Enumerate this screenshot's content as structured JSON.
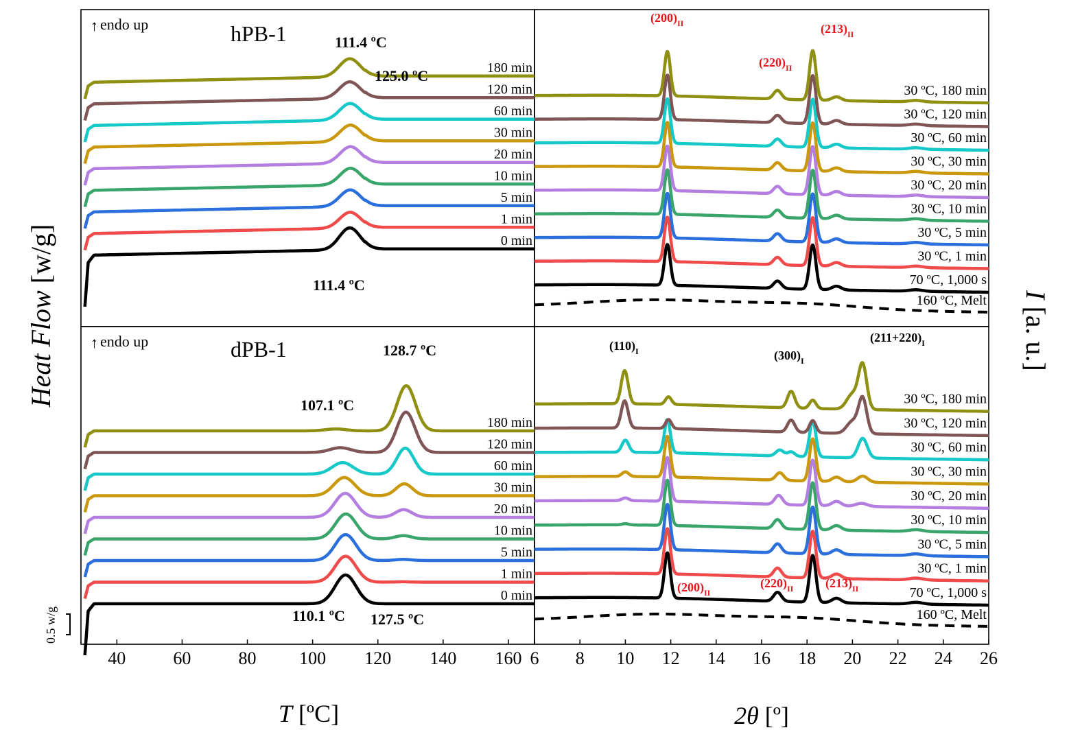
{
  "figure": {
    "y_axis_label_left_italic": "Heat Flow",
    "y_axis_label_left_unit": "[w/g]",
    "y_axis_label_right_italic": "I",
    "y_axis_label_right_unit": "[a. u.]",
    "scale_bar_label": "0.5 w/g"
  },
  "colors": {
    "0 min": "#000000",
    "1 min": "#ef4b4b",
    "5 min": "#2a6fdb",
    "10 min": "#3aa56a",
    "20 min": "#b47ee0",
    "30 min": "#c9980c",
    "60 min": "#17c8c8",
    "120 min": "#7f5555",
    "180 min": "#8f8f12"
  },
  "chart_data": [
    {
      "id": "dsc_hpb1",
      "type": "line",
      "title": "hPB-1",
      "corner_label": "endo up",
      "xlabel_italic": "T",
      "xlabel_unit": "[ºC]",
      "xlim": [
        29,
        168
      ],
      "xticks": [
        40,
        60,
        80,
        100,
        120,
        140,
        160
      ],
      "series": [
        {
          "name": "0 min",
          "offset": 0,
          "peaks": [
            {
              "x": 111.4,
              "h": 1.45,
              "w": 3.2
            }
          ]
        },
        {
          "name": "1 min",
          "offset": 1,
          "peaks": [
            {
              "x": 111.5,
              "h": 1.05,
              "w": 3.2
            }
          ]
        },
        {
          "name": "5 min",
          "offset": 2,
          "peaks": [
            {
              "x": 111.5,
              "h": 1.1,
              "w": 3.2
            }
          ]
        },
        {
          "name": "10 min",
          "offset": 3,
          "peaks": [
            {
              "x": 111.6,
              "h": 1.1,
              "w": 3.2
            }
          ]
        },
        {
          "name": "20 min",
          "offset": 4,
          "peaks": [
            {
              "x": 111.6,
              "h": 1.1,
              "w": 3.2
            }
          ]
        },
        {
          "name": "30 min",
          "offset": 5,
          "peaks": [
            {
              "x": 111.6,
              "h": 1.1,
              "w": 3.2
            }
          ]
        },
        {
          "name": "60 min",
          "offset": 6,
          "peaks": [
            {
              "x": 111.5,
              "h": 1.1,
              "w": 3.2
            }
          ]
        },
        {
          "name": "120 min",
          "offset": 7,
          "peaks": [
            {
              "x": 111.4,
              "h": 1.1,
              "w": 3.2
            }
          ]
        },
        {
          "name": "180 min",
          "offset": 8,
          "peaks": [
            {
              "x": 111.4,
              "h": 1.2,
              "w": 3.2
            }
          ]
        }
      ],
      "annotations": [
        "111.4 ºC",
        "125.0 ºC",
        "111.4 ºC"
      ]
    },
    {
      "id": "dsc_dpb1",
      "type": "line",
      "title": "dPB-1",
      "corner_label": "endo up",
      "xlabel_italic": "T",
      "xlabel_unit": "[ºC]",
      "xlim": [
        29,
        168
      ],
      "xticks": [
        40,
        60,
        80,
        100,
        120,
        140,
        160
      ],
      "series": [
        {
          "name": "0 min",
          "offset": 0,
          "peaks": [
            {
              "x": 110.1,
              "h": 1.5,
              "w": 3.2
            }
          ]
        },
        {
          "name": "1 min",
          "offset": 1,
          "peaks": [
            {
              "x": 110.1,
              "h": 1.35,
              "w": 3.2
            },
            {
              "x": 127.5,
              "h": 0.02,
              "w": 2.5
            }
          ]
        },
        {
          "name": "5 min",
          "offset": 2,
          "peaks": [
            {
              "x": 110.1,
              "h": 1.35,
              "w": 3.2
            },
            {
              "x": 127.8,
              "h": 0.06,
              "w": 2.5
            }
          ]
        },
        {
          "name": "10 min",
          "offset": 3,
          "peaks": [
            {
              "x": 110.2,
              "h": 1.3,
              "w": 3.2
            },
            {
              "x": 127.8,
              "h": 0.17,
              "w": 2.5
            }
          ]
        },
        {
          "name": "20 min",
          "offset": 4,
          "peaks": [
            {
              "x": 110.0,
              "h": 1.25,
              "w": 3.2
            },
            {
              "x": 127.9,
              "h": 0.4,
              "w": 2.5
            }
          ]
        },
        {
          "name": "30 min",
          "offset": 5,
          "peaks": [
            {
              "x": 109.7,
              "h": 0.95,
              "w": 3.2
            },
            {
              "x": 128.1,
              "h": 0.62,
              "w": 2.5
            }
          ]
        },
        {
          "name": "60 min",
          "offset": 6,
          "peaks": [
            {
              "x": 109.2,
              "h": 0.6,
              "w": 3.2
            },
            {
              "x": 128.4,
              "h": 1.35,
              "w": 2.6
            }
          ]
        },
        {
          "name": "120 min",
          "offset": 7,
          "peaks": [
            {
              "x": 108.5,
              "h": 0.25,
              "w": 3.2
            },
            {
              "x": 128.6,
              "h": 2.1,
              "w": 2.8
            }
          ]
        },
        {
          "name": "180 min",
          "offset": 8,
          "peaks": [
            {
              "x": 107.1,
              "h": 0.1,
              "w": 3.2
            },
            {
              "x": 128.7,
              "h": 2.35,
              "w": 2.8
            }
          ]
        }
      ],
      "annotations": [
        "128.7 ºC",
        "107.1 ºC",
        "110.1 ºC",
        "127.5 ºC"
      ]
    },
    {
      "id": "xrd_hpb1",
      "type": "line",
      "xlabel_italic": "2θ",
      "xlabel_unit": "[º]",
      "xlim": [
        6,
        26
      ],
      "xticks": [
        6,
        8,
        10,
        12,
        14,
        16,
        18,
        20,
        22,
        24,
        26
      ],
      "series": [
        {
          "name": "160 ºC, Melt",
          "dashed": true,
          "color": "#000000",
          "peaks": []
        },
        {
          "name": "70 ºC, 1,000 s",
          "color": "#000000",
          "peaks": [
            {
              "x": 11.85,
              "h": 3.3,
              "w": 0.13
            },
            {
              "x": 16.7,
              "h": 0.6,
              "w": 0.17
            },
            {
              "x": 18.25,
              "h": 3.6,
              "w": 0.14
            },
            {
              "x": 19.3,
              "h": 0.3,
              "w": 0.2
            },
            {
              "x": 22.8,
              "h": 0.12,
              "w": 0.3
            }
          ]
        },
        {
          "name": "30 ºC, 1 min",
          "color": "#ef4b4b",
          "peaks": [
            {
              "x": 11.85,
              "h": 3.6,
              "w": 0.13
            },
            {
              "x": 16.7,
              "h": 0.6,
              "w": 0.17
            },
            {
              "x": 18.25,
              "h": 3.9,
              "w": 0.14
            },
            {
              "x": 19.3,
              "h": 0.3,
              "w": 0.2
            },
            {
              "x": 22.8,
              "h": 0.12,
              "w": 0.3
            }
          ]
        },
        {
          "name": "30 ºC, 5 min",
          "color": "#2a6fdb",
          "peaks": [
            {
              "x": 11.85,
              "h": 3.6,
              "w": 0.13
            },
            {
              "x": 16.7,
              "h": 0.6,
              "w": 0.17
            },
            {
              "x": 18.25,
              "h": 3.9,
              "w": 0.14
            },
            {
              "x": 19.3,
              "h": 0.3,
              "w": 0.2
            },
            {
              "x": 22.8,
              "h": 0.12,
              "w": 0.3
            }
          ]
        },
        {
          "name": "30 ºC, 10 min",
          "color": "#3aa56a",
          "peaks": [
            {
              "x": 11.85,
              "h": 3.6,
              "w": 0.13
            },
            {
              "x": 16.7,
              "h": 0.6,
              "w": 0.17
            },
            {
              "x": 18.25,
              "h": 3.9,
              "w": 0.14
            },
            {
              "x": 19.3,
              "h": 0.3,
              "w": 0.2
            },
            {
              "x": 22.8,
              "h": 0.12,
              "w": 0.3
            }
          ]
        },
        {
          "name": "30 ºC, 20 min",
          "color": "#b47ee0",
          "peaks": [
            {
              "x": 11.85,
              "h": 3.6,
              "w": 0.13
            },
            {
              "x": 16.7,
              "h": 0.6,
              "w": 0.17
            },
            {
              "x": 18.25,
              "h": 3.9,
              "w": 0.14
            },
            {
              "x": 19.3,
              "h": 0.3,
              "w": 0.2
            },
            {
              "x": 22.8,
              "h": 0.12,
              "w": 0.3
            }
          ]
        },
        {
          "name": "30 ºC, 30 min",
          "color": "#c9980c",
          "peaks": [
            {
              "x": 11.85,
              "h": 3.6,
              "w": 0.13
            },
            {
              "x": 16.7,
              "h": 0.6,
              "w": 0.17
            },
            {
              "x": 18.25,
              "h": 3.9,
              "w": 0.14
            },
            {
              "x": 19.3,
              "h": 0.3,
              "w": 0.2
            },
            {
              "x": 22.8,
              "h": 0.12,
              "w": 0.3
            }
          ]
        },
        {
          "name": "30 ºC, 60 min",
          "color": "#17c8c8",
          "peaks": [
            {
              "x": 11.85,
              "h": 3.6,
              "w": 0.13
            },
            {
              "x": 16.7,
              "h": 0.6,
              "w": 0.17
            },
            {
              "x": 18.25,
              "h": 3.9,
              "w": 0.14
            },
            {
              "x": 19.3,
              "h": 0.3,
              "w": 0.2
            },
            {
              "x": 22.8,
              "h": 0.12,
              "w": 0.3
            }
          ]
        },
        {
          "name": "30 ºC, 120 min",
          "color": "#7f5555",
          "peaks": [
            {
              "x": 11.85,
              "h": 3.6,
              "w": 0.13
            },
            {
              "x": 16.7,
              "h": 0.6,
              "w": 0.17
            },
            {
              "x": 18.25,
              "h": 3.9,
              "w": 0.14
            },
            {
              "x": 19.3,
              "h": 0.3,
              "w": 0.2
            },
            {
              "x": 22.8,
              "h": 0.12,
              "w": 0.3
            }
          ]
        },
        {
          "name": "30 ºC, 180 min",
          "color": "#8f8f12",
          "peaks": [
            {
              "x": 11.85,
              "h": 3.6,
              "w": 0.13
            },
            {
              "x": 16.7,
              "h": 0.7,
              "w": 0.17
            },
            {
              "x": 18.25,
              "h": 4.0,
              "w": 0.14
            },
            {
              "x": 19.3,
              "h": 0.3,
              "w": 0.2
            },
            {
              "x": 22.8,
              "h": 0.12,
              "w": 0.3
            }
          ]
        }
      ],
      "annotations": [
        "(200)",
        "(220)",
        "(213)"
      ],
      "annotation_subscript": "II"
    },
    {
      "id": "xrd_dpb1",
      "type": "line",
      "xlabel_italic": "2θ",
      "xlabel_unit": "[º]",
      "xlim": [
        6,
        26
      ],
      "xticks": [
        6,
        8,
        10,
        12,
        14,
        16,
        18,
        20,
        22,
        24,
        26
      ],
      "series": [
        {
          "name": "160 ºC, Melt",
          "dashed": true,
          "color": "#000000",
          "peaks": []
        },
        {
          "name": "70 ºC, 1,000 s",
          "color": "#000000",
          "peaks": [
            {
              "x": 11.85,
              "h": 3.0,
              "w": 0.13
            },
            {
              "x": 16.7,
              "h": 0.6,
              "w": 0.17
            },
            {
              "x": 18.25,
              "h": 3.1,
              "w": 0.14
            },
            {
              "x": 19.3,
              "h": 0.3,
              "w": 0.2
            },
            {
              "x": 22.8,
              "h": 0.12,
              "w": 0.3
            }
          ]
        },
        {
          "name": "30 ºC, 1 min",
          "color": "#ef4b4b",
          "peaks": [
            {
              "x": 11.85,
              "h": 3.0,
              "w": 0.13
            },
            {
              "x": 16.7,
              "h": 0.6,
              "w": 0.17
            },
            {
              "x": 18.25,
              "h": 3.1,
              "w": 0.14
            },
            {
              "x": 19.3,
              "h": 0.3,
              "w": 0.2
            },
            {
              "x": 22.8,
              "h": 0.12,
              "w": 0.3
            }
          ]
        },
        {
          "name": "30 ºC, 5 min",
          "color": "#2a6fdb",
          "peaks": [
            {
              "x": 11.85,
              "h": 3.0,
              "w": 0.13
            },
            {
              "x": 16.7,
              "h": 0.6,
              "w": 0.17
            },
            {
              "x": 18.25,
              "h": 3.1,
              "w": 0.14
            },
            {
              "x": 19.3,
              "h": 0.3,
              "w": 0.2
            },
            {
              "x": 22.8,
              "h": 0.12,
              "w": 0.3
            }
          ]
        },
        {
          "name": "30 ºC, 10 min",
          "color": "#3aa56a",
          "peaks": [
            {
              "x": 10.0,
              "h": 0.08,
              "w": 0.15
            },
            {
              "x": 11.85,
              "h": 3.0,
              "w": 0.13
            },
            {
              "x": 16.7,
              "h": 0.6,
              "w": 0.17
            },
            {
              "x": 18.25,
              "h": 3.1,
              "w": 0.14
            },
            {
              "x": 19.3,
              "h": 0.3,
              "w": 0.2
            },
            {
              "x": 22.8,
              "h": 0.12,
              "w": 0.3
            }
          ]
        },
        {
          "name": "30 ºC, 20 min",
          "color": "#b47ee0",
          "peaks": [
            {
              "x": 10.0,
              "h": 0.18,
              "w": 0.15
            },
            {
              "x": 11.85,
              "h": 2.9,
              "w": 0.13
            },
            {
              "x": 16.75,
              "h": 0.6,
              "w": 0.17
            },
            {
              "x": 18.25,
              "h": 3.0,
              "w": 0.14
            },
            {
              "x": 19.3,
              "h": 0.3,
              "w": 0.2
            },
            {
              "x": 20.4,
              "h": 0.2,
              "w": 0.25
            }
          ]
        },
        {
          "name": "30 ºC, 30 min",
          "color": "#c9980c",
          "peaks": [
            {
              "x": 10.0,
              "h": 0.3,
              "w": 0.15
            },
            {
              "x": 11.85,
              "h": 2.7,
              "w": 0.13
            },
            {
              "x": 16.8,
              "h": 0.5,
              "w": 0.17
            },
            {
              "x": 18.25,
              "h": 2.8,
              "w": 0.14
            },
            {
              "x": 19.3,
              "h": 0.3,
              "w": 0.2
            },
            {
              "x": 20.45,
              "h": 0.4,
              "w": 0.22
            }
          ]
        },
        {
          "name": "30 ºC, 60 min",
          "color": "#17c8c8",
          "peaks": [
            {
              "x": 10.0,
              "h": 0.8,
              "w": 0.15
            },
            {
              "x": 11.85,
              "h": 2.2,
              "w": 0.13
            },
            {
              "x": 16.8,
              "h": 0.4,
              "w": 0.17
            },
            {
              "x": 17.3,
              "h": 0.3,
              "w": 0.16
            },
            {
              "x": 18.25,
              "h": 2.4,
              "w": 0.14
            },
            {
              "x": 20.45,
              "h": 1.3,
              "w": 0.2
            }
          ]
        },
        {
          "name": "30 ºC, 120 min",
          "color": "#7f5555",
          "peaks": [
            {
              "x": 9.97,
              "h": 1.8,
              "w": 0.15
            },
            {
              "x": 11.9,
              "h": 0.6,
              "w": 0.13
            },
            {
              "x": 17.3,
              "h": 0.8,
              "w": 0.16
            },
            {
              "x": 18.25,
              "h": 0.8,
              "w": 0.14
            },
            {
              "x": 20.0,
              "h": 0.8,
              "w": 0.25
            },
            {
              "x": 20.45,
              "h": 2.3,
              "w": 0.18
            }
          ]
        },
        {
          "name": "30 ºC, 180 min",
          "color": "#8f8f12",
          "peaks": [
            {
              "x": 9.97,
              "h": 2.2,
              "w": 0.15
            },
            {
              "x": 11.9,
              "h": 0.5,
              "w": 0.13
            },
            {
              "x": 17.3,
              "h": 1.1,
              "w": 0.16
            },
            {
              "x": 18.25,
              "h": 0.55,
              "w": 0.14
            },
            {
              "x": 20.0,
              "h": 1.0,
              "w": 0.25
            },
            {
              "x": 20.45,
              "h": 2.9,
              "w": 0.18
            }
          ]
        }
      ],
      "annotations": [
        "(110)",
        "(300)",
        "(211+220)",
        "(200)",
        "(220)",
        "(213)"
      ],
      "annotation_subscripts": [
        "I",
        "I",
        "I",
        "II",
        "II",
        "II"
      ]
    }
  ]
}
